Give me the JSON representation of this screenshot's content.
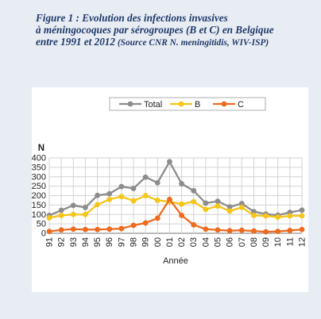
{
  "caption": {
    "line1": "Figure 1 : Evolution des infections invasives",
    "line2": "à méningocoques par sérogroupes (B et C) en Belgique",
    "line3_main": "entre 1991 et 2012",
    "line3_source": " (Source CNR N. meningitidis, WIV-ISP)"
  },
  "chart_data": {
    "type": "line",
    "title": "",
    "xlabel": "Année",
    "ylabel": "N",
    "ylim": [
      0,
      400
    ],
    "yticks": [
      0,
      50,
      100,
      150,
      200,
      250,
      300,
      350,
      400
    ],
    "grid": true,
    "legend": "top-center",
    "categories": [
      "91",
      "92",
      "93",
      "94",
      "95",
      "96",
      "97",
      "98",
      "99",
      "00",
      "01",
      "02",
      "03",
      "04",
      "05",
      "06",
      "07",
      "08",
      "09",
      "10",
      "11",
      "12"
    ],
    "series": [
      {
        "name": "Total",
        "color": "#8c8c8c",
        "values": [
          95,
          122,
          148,
          137,
          201,
          210,
          248,
          238,
          298,
          268,
          380,
          263,
          226,
          160,
          170,
          140,
          158,
          115,
          102,
          96,
          111,
          123
        ]
      },
      {
        "name": "B",
        "color": "#f5c518",
        "values": [
          82,
          95,
          100,
          100,
          152,
          180,
          195,
          172,
          200,
          175,
          168,
          155,
          168,
          127,
          145,
          118,
          138,
          95,
          92,
          86,
          92,
          93
        ]
      },
      {
        "name": "C",
        "color": "#ee6a1f",
        "values": [
          10,
          18,
          22,
          20,
          20,
          22,
          25,
          42,
          55,
          80,
          180,
          95,
          45,
          22,
          18,
          14,
          16,
          12,
          8,
          10,
          15,
          20
        ]
      }
    ]
  }
}
